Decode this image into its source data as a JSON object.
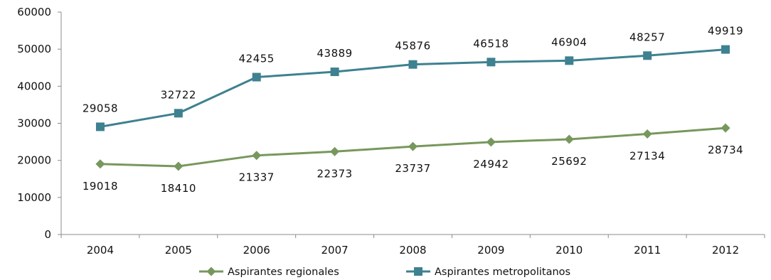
{
  "chart_data": {
    "type": "line",
    "categories": [
      "2004",
      "2005",
      "2006",
      "2007",
      "2008",
      "2009",
      "2010",
      "2011",
      "2012"
    ],
    "series": [
      {
        "name": "Aspirantes regionales",
        "values": [
          19018,
          18410,
          21337,
          22373,
          23737,
          24942,
          25692,
          27134,
          28734
        ],
        "color": "#77985c",
        "marker": "diamond"
      },
      {
        "name": "Aspirantes metropolitanos",
        "values": [
          29058,
          32722,
          42455,
          43889,
          45876,
          46518,
          46904,
          48257,
          49919
        ],
        "color": "#3e8190",
        "marker": "square"
      }
    ],
    "ylim": [
      0,
      60000
    ],
    "yticks": [
      0,
      10000,
      20000,
      30000,
      40000,
      50000,
      60000
    ],
    "grid": false,
    "legend_position": "bottom",
    "data_labels": true
  }
}
